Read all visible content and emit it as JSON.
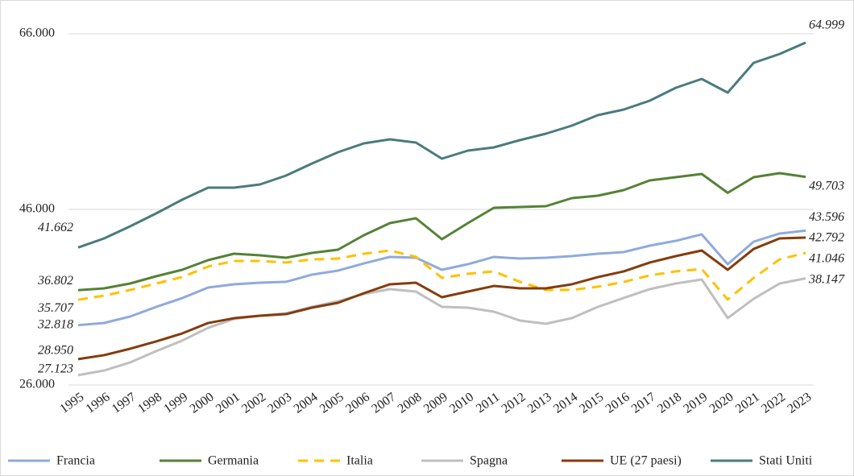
{
  "chart_data": {
    "type": "line",
    "categories": [
      "1995",
      "1996",
      "1997",
      "1998",
      "1999",
      "2000",
      "2001",
      "2002",
      "2003",
      "2004",
      "2005",
      "2006",
      "2007",
      "2008",
      "2009",
      "2010",
      "2011",
      "2012",
      "2013",
      "2014",
      "2015",
      "2016",
      "2017",
      "2018",
      "2019",
      "2020",
      "2021",
      "2022",
      "2023"
    ],
    "ylim": [
      26000,
      66000
    ],
    "yticks": [
      {
        "value": 26000,
        "label": "26.000"
      },
      {
        "value": 46000,
        "label": "46.000"
      },
      {
        "value": 66000,
        "label": "66.000"
      }
    ],
    "grid": true,
    "legend": "bottom",
    "series": [
      {
        "name": "Francia",
        "color": "#8faadc",
        "line_style": "solid",
        "values": [
          32818,
          33065,
          33798,
          34890,
          35890,
          37100,
          37470,
          37650,
          37750,
          38570,
          39030,
          39850,
          40590,
          40500,
          39120,
          39760,
          40590,
          40400,
          40500,
          40680,
          40950,
          41140,
          41870,
          42420,
          43160,
          39760,
          42330,
          43250,
          43596
        ],
        "value_labels": [
          "32.818",
          null,
          null,
          null,
          null,
          null,
          null,
          null,
          null,
          null,
          null,
          null,
          null,
          null,
          null,
          null,
          null,
          null,
          null,
          null,
          null,
          null,
          null,
          null,
          null,
          null,
          null,
          null,
          "43.596"
        ]
      },
      {
        "name": "Germania",
        "color": "#548235",
        "line_style": "solid",
        "values": [
          36802,
          37010,
          37560,
          38385,
          39120,
          40220,
          40954,
          40771,
          40495,
          41046,
          41413,
          43064,
          44440,
          44991,
          42606,
          44440,
          46183,
          46275,
          46367,
          47284,
          47560,
          48202,
          49303,
          49670,
          50037,
          47890,
          49670,
          50128,
          49703
        ],
        "value_labels": [
          "36.802",
          null,
          null,
          null,
          null,
          null,
          null,
          null,
          null,
          null,
          null,
          null,
          null,
          null,
          null,
          null,
          null,
          null,
          null,
          null,
          null,
          null,
          null,
          null,
          null,
          null,
          null,
          null,
          "49.703"
        ]
      },
      {
        "name": "Italia",
        "color": "#ffc000",
        "line_style": "dashed",
        "values": [
          35707,
          36180,
          36820,
          37560,
          38290,
          39490,
          40130,
          40130,
          39950,
          40310,
          40400,
          40950,
          41320,
          40590,
          38200,
          38660,
          38940,
          37750,
          36830,
          36830,
          37190,
          37740,
          38480,
          38940,
          39210,
          35730,
          38200,
          40310,
          41046
        ],
        "value_labels": [
          "35.707",
          null,
          null,
          null,
          null,
          null,
          null,
          null,
          null,
          null,
          null,
          null,
          null,
          null,
          null,
          null,
          null,
          null,
          null,
          null,
          null,
          null,
          null,
          null,
          null,
          null,
          null,
          null,
          "41.046"
        ]
      },
      {
        "name": "Spagna",
        "color": "#bfbfbf",
        "line_style": "solid",
        "values": [
          27123,
          27650,
          28570,
          29850,
          31050,
          32510,
          33520,
          33890,
          34170,
          34900,
          35540,
          36370,
          36920,
          36640,
          34900,
          34810,
          34350,
          33340,
          32970,
          33620,
          34900,
          35910,
          36920,
          37560,
          38020,
          33620,
          35820,
          37560,
          38147
        ],
        "value_labels": [
          "27.123",
          null,
          null,
          null,
          null,
          null,
          null,
          null,
          null,
          null,
          null,
          null,
          null,
          null,
          null,
          null,
          null,
          null,
          null,
          null,
          null,
          null,
          null,
          null,
          null,
          null,
          null,
          null,
          "38.147"
        ]
      },
      {
        "name": "UE (27 paesi)",
        "color": "#843c0c",
        "line_style": "solid",
        "values": [
          28950,
          29400,
          30130,
          30960,
          31870,
          33060,
          33610,
          33890,
          34070,
          34810,
          35360,
          36460,
          37470,
          37650,
          36000,
          36640,
          37280,
          37010,
          37010,
          37470,
          38290,
          38940,
          39950,
          40680,
          41320,
          39120,
          41500,
          42700,
          42792
        ],
        "value_labels": [
          "28.950",
          null,
          null,
          null,
          null,
          null,
          null,
          null,
          null,
          null,
          null,
          null,
          null,
          null,
          null,
          null,
          null,
          null,
          null,
          null,
          null,
          null,
          null,
          null,
          null,
          null,
          null,
          null,
          "42.792"
        ]
      },
      {
        "name": "Stati Uniti",
        "color": "#4a7b7e",
        "line_style": "solid",
        "values": [
          41662,
          42697,
          44073,
          45541,
          47101,
          48477,
          48477,
          48844,
          49853,
          51229,
          52514,
          53523,
          53982,
          53615,
          51780,
          52697,
          53064,
          53890,
          54624,
          55541,
          56733,
          57376,
          58385,
          59853,
          60862,
          59302,
          62697,
          63706,
          64999
        ],
        "value_labels": [
          "41.662",
          null,
          null,
          null,
          null,
          null,
          null,
          null,
          null,
          null,
          null,
          null,
          null,
          null,
          null,
          null,
          null,
          null,
          null,
          null,
          null,
          null,
          null,
          null,
          null,
          null,
          null,
          null,
          "64.999"
        ]
      }
    ]
  }
}
